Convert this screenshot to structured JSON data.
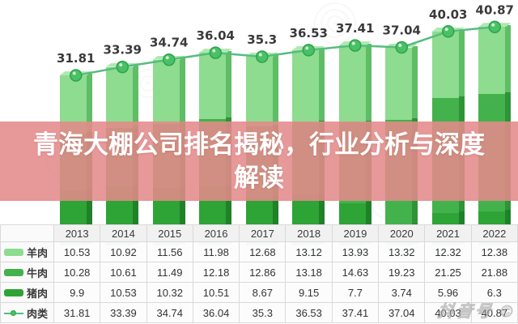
{
  "overlay": {
    "line1": "青海大棚公司排名揭秘，行业分析与深度",
    "line2": "解读"
  },
  "watermark_text": "抖音号 ©",
  "colors": {
    "banner": "rgba(228,138,138,0.88)",
    "label_text": "#3a3a3a",
    "line": "#57bd7e",
    "marker_fill": "#49c166",
    "marker_rim": "#2fa24c",
    "series_front": [
      "#8ddc8f",
      "#43b24c",
      "#2da435"
    ],
    "series_side": [
      "#5fbd66",
      "#2f9338",
      "#1f8128"
    ],
    "cap_top": "#aee9b0"
  },
  "chart_data": {
    "type": "bar",
    "subtype": "stacked-3d-bars-with-total-line",
    "title": "",
    "xlabel": "",
    "ylabel": "",
    "ylim": [
      0,
      45
    ],
    "grid": false,
    "legend_position": "table-first-column",
    "categories": [
      "2013",
      "2014",
      "2015",
      "2016",
      "2017",
      "2018",
      "2019",
      "2020",
      "2021",
      "2022"
    ],
    "series": [
      {
        "name": "羊肉",
        "type": "bar",
        "values": [
          10.53,
          10.92,
          11.56,
          11.98,
          12.68,
          13.12,
          13.93,
          13.32,
          12.32,
          12.38
        ]
      },
      {
        "name": "牛肉",
        "type": "bar",
        "values": [
          10.28,
          10.61,
          11.49,
          12.18,
          12.86,
          13.18,
          14.63,
          19.23,
          21.25,
          21.88
        ]
      },
      {
        "name": "猪肉",
        "type": "bar",
        "values": [
          9.9,
          10.53,
          10.32,
          10.51,
          8.67,
          9.15,
          7.7,
          3.74,
          5.96,
          6.3
        ]
      },
      {
        "name": "肉类",
        "type": "line",
        "values": [
          31.81,
          33.39,
          34.74,
          36.04,
          35.3,
          36.53,
          37.41,
          37.04,
          40.03,
          40.87
        ],
        "labels_shown": true
      }
    ]
  }
}
